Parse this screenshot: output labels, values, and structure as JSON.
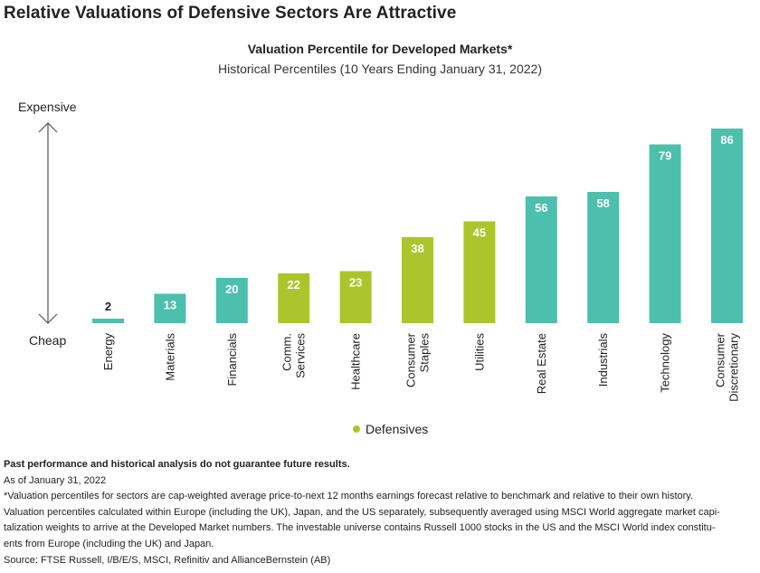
{
  "header": {
    "main_title": "Relative Valuations of Defensive Sectors Are Attractive",
    "chart_title": "Valuation Percentile for Developed Markets*",
    "chart_subtitle": "Historical Percentiles (10 Years Ending January 31, 2022)"
  },
  "axis": {
    "top_label": "Expensive",
    "bottom_label": "Cheap"
  },
  "legend": {
    "label": "Defensives"
  },
  "colors": {
    "defensive": "#adc52c",
    "other": "#4dbfad"
  },
  "chart_data": {
    "type": "bar",
    "categories": [
      [
        "Energy"
      ],
      [
        "Materials"
      ],
      [
        "Financials"
      ],
      [
        "Comm.",
        "Services"
      ],
      [
        "Healthcare"
      ],
      [
        "Consumer",
        "Staples"
      ],
      [
        "Utilities"
      ],
      [
        "Real Estate"
      ],
      [
        "Industrials"
      ],
      [
        "Technology"
      ],
      [
        "Consumer",
        "Discretionary"
      ]
    ],
    "values": [
      2,
      13,
      20,
      22,
      23,
      38,
      45,
      56,
      58,
      79,
      86
    ],
    "defensive": [
      false,
      false,
      false,
      true,
      true,
      true,
      true,
      false,
      false,
      false,
      false
    ],
    "ylim": [
      0,
      86
    ],
    "grid": false,
    "legend_position": "bottom-center"
  },
  "notes": {
    "disclaimer": "Past performance and historical analysis do not guarantee future results.",
    "as_of": "As of January 31, 2022",
    "footnote_lines": [
      "*Valuation percentiles for sectors are cap-weighted average price-to-next 12 months earnings forecast relative to benchmark and relative to their own history.",
      "Valuation percentiles calculated within Europe (including the UK), Japan, and the US separately, subsequently averaged using MSCI World aggregate market capi-",
      "talization weights to arrive at the Developed Market numbers. The investable universe contains Russell 1000 stocks in the US and the MSCI World index constitu-",
      "ents from Europe (including the UK) and Japan."
    ],
    "source": "Source: FTSE Russell, I/B/E/S, MSCI, Refinitiv and AllianceBernstein (AB)"
  }
}
